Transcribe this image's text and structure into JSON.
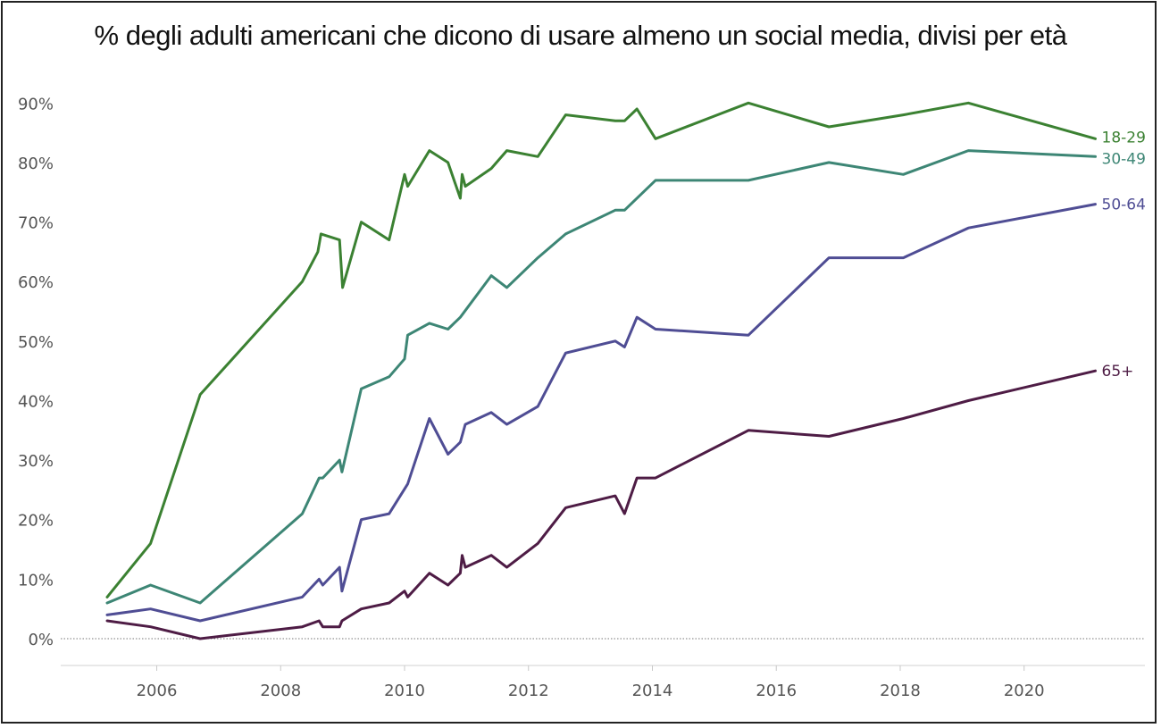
{
  "chart_data": {
    "type": "line",
    "title": "% degli adulti americani che dicono di usare almeno un social media, divisi per età",
    "xlim": [
      2004.45,
      2021.95
    ],
    "ylim": [
      -4.5,
      95
    ],
    "x_ticks": [
      2006,
      2008,
      2010,
      2012,
      2014,
      2016,
      2018,
      2020
    ],
    "x_tick_labels": [
      "2006",
      "2008",
      "2010",
      "2012",
      "2014",
      "2016",
      "2018",
      "2020"
    ],
    "y_ticks": [
      0,
      10,
      20,
      30,
      40,
      50,
      60,
      70,
      80,
      90
    ],
    "y_tick_labels": [
      "0%",
      "10%",
      "20%",
      "30%",
      "40%",
      "50%",
      "60%",
      "70%",
      "80%",
      "90%"
    ],
    "grid": false,
    "zero_line": "dotted",
    "series": [
      {
        "name": "18-29",
        "color": "#3b8132",
        "x": [
          2005.2,
          2005.9,
          2006.7,
          2008.35,
          2008.6,
          2008.65,
          2008.95,
          2009.0,
          2009.3,
          2009.75,
          2010.0,
          2010.05,
          2010.4,
          2010.7,
          2010.9,
          2010.93,
          2010.98,
          2011.4,
          2011.65,
          2012.15,
          2012.6,
          2013.4,
          2013.55,
          2013.75,
          2014.05,
          2015.55,
          2016.85,
          2018.05,
          2019.1,
          2021.15
        ],
        "y": [
          7,
          16,
          41,
          60,
          65,
          68,
          67,
          59,
          70,
          67,
          78,
          76,
          82,
          80,
          74,
          78,
          76,
          79,
          82,
          81,
          88,
          87,
          87,
          89,
          84,
          90,
          86,
          88,
          90,
          84
        ]
      },
      {
        "name": "30-49",
        "color": "#3d8675",
        "x": [
          2005.2,
          2005.9,
          2006.7,
          2008.35,
          2008.62,
          2008.68,
          2008.95,
          2008.99,
          2009.3,
          2009.75,
          2010.0,
          2010.05,
          2010.4,
          2010.7,
          2010.9,
          2011.4,
          2011.65,
          2012.15,
          2012.6,
          2013.4,
          2013.55,
          2014.05,
          2015.55,
          2016.85,
          2018.05,
          2019.1,
          2021.15
        ],
        "y": [
          6,
          9,
          6,
          21,
          27,
          27,
          30,
          28,
          42,
          44,
          47,
          51,
          53,
          52,
          54,
          61,
          59,
          64,
          68,
          72,
          72,
          77,
          77,
          80,
          78,
          82,
          81
        ]
      },
      {
        "name": "50-64",
        "color": "#4f4d94",
        "x": [
          2005.2,
          2005.9,
          2006.7,
          2008.35,
          2008.62,
          2008.68,
          2008.95,
          2008.99,
          2009.3,
          2009.75,
          2010.05,
          2010.4,
          2010.7,
          2010.9,
          2010.98,
          2011.4,
          2011.65,
          2012.15,
          2012.6,
          2013.4,
          2013.55,
          2013.75,
          2014.05,
          2015.55,
          2016.85,
          2018.05,
          2019.1,
          2021.15
        ],
        "y": [
          4,
          5,
          3,
          7,
          10,
          9,
          12,
          8,
          20,
          21,
          26,
          37,
          31,
          33,
          36,
          38,
          36,
          39,
          48,
          50,
          49,
          54,
          52,
          51,
          64,
          64,
          69,
          73
        ]
      },
      {
        "name": "65+",
        "color": "#4e1c45",
        "x": [
          2005.2,
          2005.9,
          2006.7,
          2008.35,
          2008.62,
          2008.68,
          2008.95,
          2008.99,
          2009.3,
          2009.75,
          2010.0,
          2010.05,
          2010.4,
          2010.7,
          2010.9,
          2010.93,
          2010.98,
          2011.4,
          2011.65,
          2012.15,
          2012.6,
          2013.4,
          2013.55,
          2013.75,
          2014.05,
          2015.55,
          2016.85,
          2018.05,
          2019.1,
          2021.15
        ],
        "y": [
          3,
          2,
          0,
          2,
          3,
          2,
          2,
          3,
          5,
          6,
          8,
          7,
          11,
          9,
          11,
          14,
          12,
          14,
          12,
          16,
          22,
          24,
          21,
          27,
          27,
          35,
          34,
          37,
          40,
          45
        ]
      }
    ]
  }
}
